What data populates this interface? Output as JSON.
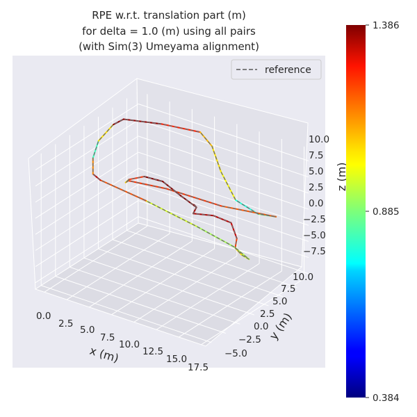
{
  "chart_data": {
    "type": "line",
    "projection": "3d",
    "title": [
      "RPE w.r.t. translation part (m)",
      "for delta = 1.0 (m) using all pairs",
      "(with Sim(3) Umeyama alignment)"
    ],
    "xlabel": "x (m)",
    "ylabel": "y (m)",
    "zlabel": "z (m)",
    "x_ticks": [
      "0.0",
      "2.5",
      "5.0",
      "7.5",
      "10.0",
      "12.5",
      "15.0",
      "17.5"
    ],
    "y_ticks": [
      "−5.0",
      "−2.5",
      "0.0",
      "2.5",
      "5.0",
      "7.5",
      "10.0"
    ],
    "z_ticks": [
      "−7.5",
      "−5.0",
      "−2.5",
      "0.0",
      "2.5",
      "5.0",
      "7.5",
      "10.0"
    ],
    "legend": {
      "entries": [
        "reference"
      ],
      "placement": "top-right",
      "style": "dashed",
      "color": "#6e6e6e"
    },
    "colorbar": {
      "colormap": "jet",
      "min": 0.384,
      "max": 1.386,
      "ticks": [
        "0.384",
        "0.885",
        "1.386"
      ]
    },
    "grid": true,
    "series": [
      {
        "name": "reference",
        "points": [
          {
            "x": 15.0,
            "y": -3.0,
            "z": 10.0,
            "err": 1.38
          },
          {
            "x": 13.5,
            "y": -1.0,
            "z": 8.5,
            "err": 1.36
          },
          {
            "x": 12.5,
            "y": 1.0,
            "z": 6.5,
            "err": 1.35
          },
          {
            "x": 11.5,
            "y": 2.0,
            "z": 4.5,
            "err": 1.34
          },
          {
            "x": 12.5,
            "y": 4.0,
            "z": 3.5,
            "err": 1.33
          },
          {
            "x": 13.5,
            "y": 5.5,
            "z": 2.0,
            "err": 1.32
          },
          {
            "x": 13.5,
            "y": 6.5,
            "z": -1.0,
            "err": 1.3
          },
          {
            "x": 13.0,
            "y": 7.0,
            "z": -3.0,
            "err": 1.1
          },
          {
            "x": 12.5,
            "y": 9.0,
            "z": -5.5,
            "err": 1.0
          },
          {
            "x": 12.0,
            "y": 11.0,
            "z": -7.5,
            "err": 0.95
          },
          {
            "x": 11.0,
            "y": 10.0,
            "z": -5.5,
            "err": 0.93
          },
          {
            "x": 8.0,
            "y": 8.0,
            "z": -2.5,
            "err": 0.92
          },
          {
            "x": 4.0,
            "y": 5.5,
            "z": 1.0,
            "err": 1.02
          },
          {
            "x": 0.5,
            "y": 3.0,
            "z": 4.0,
            "err": 1.34
          },
          {
            "x": 0.0,
            "y": 2.5,
            "z": 5.0,
            "err": 1.3
          },
          {
            "x": 0.0,
            "y": 2.5,
            "z": 7.5,
            "err": 0.95
          },
          {
            "x": 0.3,
            "y": 3.0,
            "z": 10.0,
            "err": 0.7
          },
          {
            "x": 1.0,
            "y": 4.5,
            "z": 12.0,
            "err": 1.38
          },
          {
            "x": 1.5,
            "y": 5.5,
            "z": 12.5,
            "err": 1.37
          },
          {
            "x": 4.5,
            "y": 7.5,
            "z": 12.0,
            "err": 1.36
          },
          {
            "x": 7.5,
            "y": 9.5,
            "z": 11.0,
            "err": 1.1
          },
          {
            "x": 8.5,
            "y": 10.0,
            "z": 9.0,
            "err": 1.05
          },
          {
            "x": 9.5,
            "y": 10.0,
            "z": 5.5,
            "err": 1.02
          },
          {
            "x": 10.5,
            "y": 11.0,
            "z": 1.0,
            "err": 1.0
          },
          {
            "x": 13.0,
            "y": 11.0,
            "z": 0.0,
            "err": 0.6
          },
          {
            "x": 15.0,
            "y": 11.0,
            "z": 0.5,
            "err": 1.15
          },
          {
            "x": 10.5,
            "y": 8.5,
            "z": 1.5,
            "err": 1.2
          },
          {
            "x": 6.0,
            "y": 6.0,
            "z": 3.5,
            "err": 1.22
          },
          {
            "x": 3.0,
            "y": 4.0,
            "z": 4.5,
            "err": 1.2
          },
          {
            "x": 3.0,
            "y": 3.5,
            "z": 4.5,
            "err": 1.05
          },
          {
            "x": 4.0,
            "y": 2.5,
            "z": 6.0,
            "err": 1.05
          },
          {
            "x": 7.0,
            "y": 0.5,
            "z": 9.0,
            "err": 1.38
          },
          {
            "x": 10.0,
            "y": -1.0,
            "z": 10.5,
            "err": 1.38
          },
          {
            "x": 13.0,
            "y": -2.5,
            "z": 10.5,
            "err": 1.38
          },
          {
            "x": 15.0,
            "y": -3.0,
            "z": 10.0,
            "err": 1.38
          }
        ]
      }
    ]
  }
}
